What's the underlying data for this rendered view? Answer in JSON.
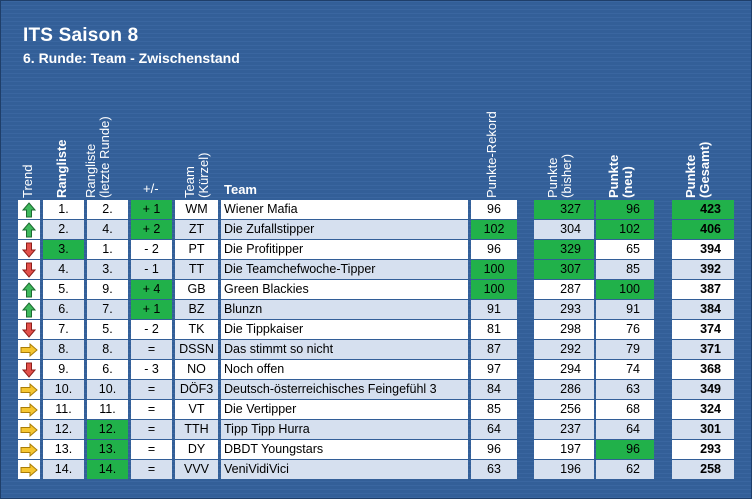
{
  "title": "ITS Saison 8",
  "subtitle": "6. Runde: Team - Zwischenstand",
  "headers": {
    "trend": "Trend",
    "rank": "Rangliste",
    "prev_line1": "Rangliste",
    "prev_line2": "(letzte Runde)",
    "plusminus": "+/-",
    "tag_line1": "Team",
    "tag_line2": "(Kürzel)",
    "team": "Team",
    "record": "Punkte-Rekord",
    "pb_line1": "Punkte",
    "pb_line2": "(bisher)",
    "pn_line1": "Punkte",
    "pn_line2": "(neu)",
    "pg_line1": "Punkte",
    "pg_line2": "(Gesamt)"
  },
  "colors": {
    "highlight": "#21b14a",
    "up": "#2fa84f",
    "down": "#e0403a",
    "same": "#f2c12e",
    "background": "#335f98"
  },
  "rows": [
    {
      "trend": "up",
      "trend_icon": "arrow-up-icon",
      "rank": "1.",
      "prev": "2.",
      "pm": "+ 1",
      "tag": "WM",
      "team": "Wiener Mafia",
      "rec": "96",
      "pb": "327",
      "pn": "96",
      "pg": "423",
      "hl": [
        "pm",
        "pb",
        "pn",
        "pg"
      ]
    },
    {
      "trend": "up",
      "trend_icon": "arrow-up-icon",
      "rank": "2.",
      "prev": "4.",
      "pm": "+ 2",
      "tag": "ZT",
      "team": "Die Zufallstipper",
      "rec": "102",
      "pb": "304",
      "pn": "102",
      "pg": "406",
      "hl": [
        "pm",
        "rec",
        "pn",
        "pg"
      ]
    },
    {
      "trend": "down",
      "trend_icon": "arrow-down-icon",
      "rank": "3.",
      "prev": "1.",
      "pm": "- 2",
      "tag": "PT",
      "team": "Die Profitipper",
      "rec": "96",
      "pb": "329",
      "pn": "65",
      "pg": "394",
      "hl": [
        "rank",
        "pb"
      ]
    },
    {
      "trend": "down",
      "trend_icon": "arrow-down-icon",
      "rank": "4.",
      "prev": "3.",
      "pm": "- 1",
      "tag": "TT",
      "team": "Die Teamchefwoche-Tipper",
      "rec": "100",
      "pb": "307",
      "pn": "85",
      "pg": "392",
      "hl": [
        "rec",
        "pb"
      ]
    },
    {
      "trend": "up",
      "trend_icon": "arrow-up-icon",
      "rank": "5.",
      "prev": "9.",
      "pm": "+ 4",
      "tag": "GB",
      "team": "Green Blackies",
      "rec": "100",
      "pb": "287",
      "pn": "100",
      "pg": "387",
      "hl": [
        "pm",
        "rec",
        "pn"
      ]
    },
    {
      "trend": "up",
      "trend_icon": "arrow-up-icon",
      "rank": "6.",
      "prev": "7.",
      "pm": "+ 1",
      "tag": "BZ",
      "team": "Blunzn",
      "rec": "91",
      "pb": "293",
      "pn": "91",
      "pg": "384",
      "hl": [
        "pm"
      ]
    },
    {
      "trend": "down",
      "trend_icon": "arrow-down-icon",
      "rank": "7.",
      "prev": "5.",
      "pm": "- 2",
      "tag": "TK",
      "team": "Die Tippkaiser",
      "rec": "81",
      "pb": "298",
      "pn": "76",
      "pg": "374",
      "hl": []
    },
    {
      "trend": "same",
      "trend_icon": "arrow-right-icon",
      "rank": "8.",
      "prev": "8.",
      "pm": "=",
      "tag": "DSSN",
      "team": "Das stimmt so nicht",
      "rec": "87",
      "pb": "292",
      "pn": "79",
      "pg": "371",
      "hl": []
    },
    {
      "trend": "down",
      "trend_icon": "arrow-down-icon",
      "rank": "9.",
      "prev": "6.",
      "pm": "- 3",
      "tag": "NO",
      "team": "Noch offen",
      "rec": "97",
      "pb": "294",
      "pn": "74",
      "pg": "368",
      "hl": []
    },
    {
      "trend": "same",
      "trend_icon": "arrow-right-icon",
      "rank": "10.",
      "prev": "10.",
      "pm": "=",
      "tag": "DÖF3",
      "team": "Deutsch-österreichisches Feingefühl 3",
      "rec": "84",
      "pb": "286",
      "pn": "63",
      "pg": "349",
      "hl": []
    },
    {
      "trend": "same",
      "trend_icon": "arrow-right-icon",
      "rank": "11.",
      "prev": "11.",
      "pm": "=",
      "tag": "VT",
      "team": "Die Vertipper",
      "rec": "85",
      "pb": "256",
      "pn": "68",
      "pg": "324",
      "hl": []
    },
    {
      "trend": "same",
      "trend_icon": "arrow-right-icon",
      "rank": "12.",
      "prev": "12.",
      "pm": "=",
      "tag": "TTH",
      "team": "Tipp Tipp Hurra",
      "rec": "64",
      "pb": "237",
      "pn": "64",
      "pg": "301",
      "hl": [
        "prev"
      ]
    },
    {
      "trend": "same",
      "trend_icon": "arrow-right-icon",
      "rank": "13.",
      "prev": "13.",
      "pm": "=",
      "tag": "DY",
      "team": "DBDT Youngstars",
      "rec": "96",
      "pb": "197",
      "pn": "96",
      "pg": "293",
      "hl": [
        "prev",
        "pn"
      ]
    },
    {
      "trend": "same",
      "trend_icon": "arrow-right-icon",
      "rank": "14.",
      "prev": "14.",
      "pm": "=",
      "tag": "VVV",
      "team": "VeniVidiVici",
      "rec": "63",
      "pb": "196",
      "pn": "62",
      "pg": "258",
      "hl": [
        "prev"
      ]
    }
  ]
}
